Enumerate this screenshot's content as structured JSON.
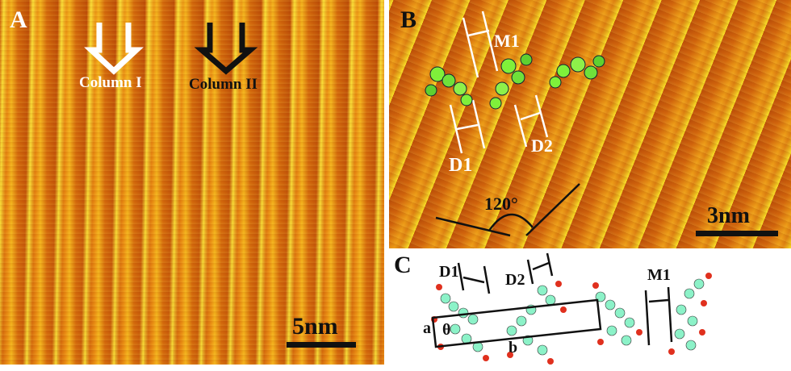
{
  "panels": {
    "a": {
      "label": "A",
      "column_1": "Column I",
      "column_2": "Column II",
      "scale_bar": "5nm"
    },
    "b": {
      "label": "B",
      "m1": "M1",
      "d1": "D1",
      "d2": "D2",
      "angle": "120°",
      "scale_bar": "3nm"
    },
    "c": {
      "label": "C",
      "d1": "D1",
      "d2": "D2",
      "m1": "M1",
      "a": "a",
      "theta": "θ",
      "b": "b"
    }
  },
  "colors": {
    "stm_dark": "#c0520a",
    "stm_bright": "#ffe23a",
    "molecule": "#8cf2c8",
    "oxygen": "#e0301e"
  }
}
